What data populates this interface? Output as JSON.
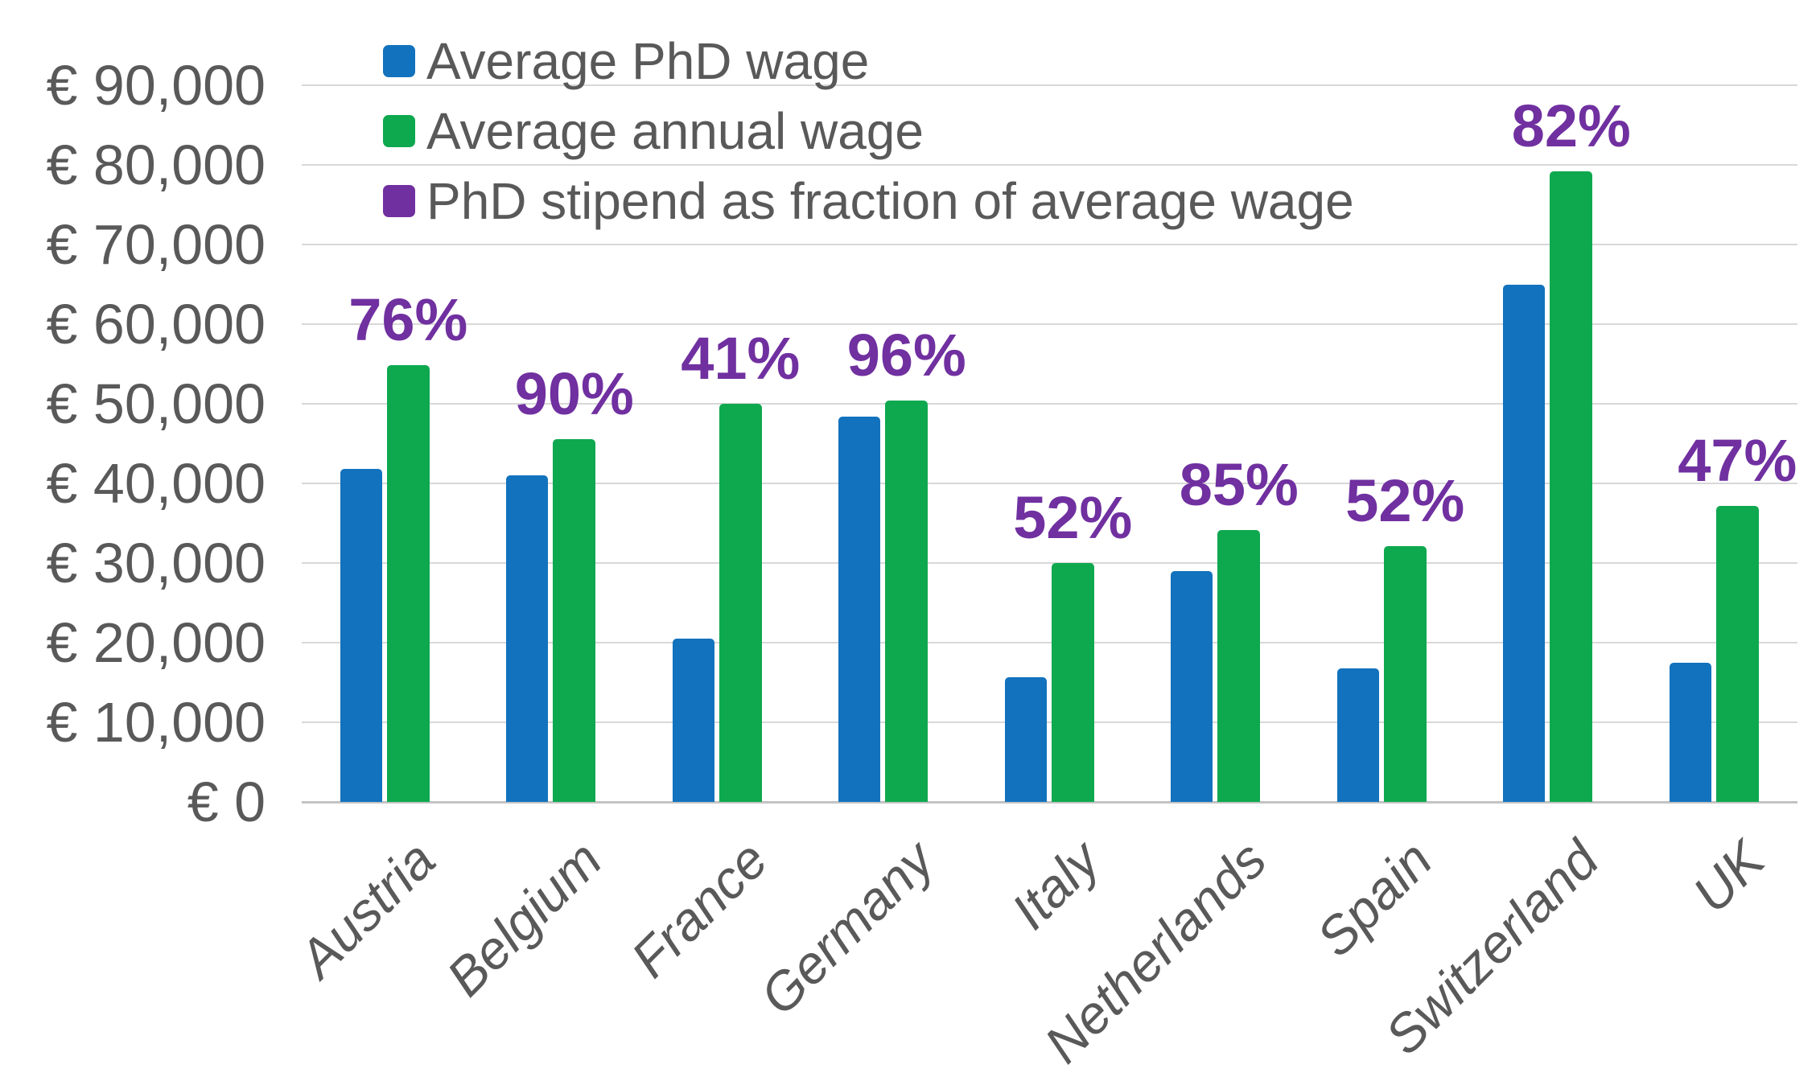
{
  "chart_data": {
    "type": "bar",
    "title": "",
    "xlabel": "",
    "ylabel": "",
    "categories": [
      "Austria",
      "Belgium",
      "France",
      "Germany",
      "Italy",
      "Netherlands",
      "Spain",
      "Switzerland",
      "UK"
    ],
    "series": [
      {
        "name": "Average PhD wage",
        "color": "#1272bd",
        "values": [
          41800,
          41000,
          20500,
          48400,
          15700,
          29000,
          16800,
          65000,
          17500
        ]
      },
      {
        "name": "Average annual wage",
        "color": "#0ea84f",
        "values": [
          54800,
          45600,
          50000,
          50400,
          30000,
          34100,
          32100,
          79200,
          37200
        ]
      },
      {
        "name": "PhD stipend as fraction of average wage",
        "color": "#7030a0",
        "labels": [
          "76%",
          "90%",
          "41%",
          "96%",
          "52%",
          "85%",
          "52%",
          "82%",
          "47%"
        ]
      }
    ],
    "y_axis": {
      "min": 0,
      "max": 90000,
      "step": 10000,
      "tick_labels": [
        "€ 0",
        "€ 10,000",
        "€ 20,000",
        "€ 30,000",
        "€ 40,000",
        "€ 50,000",
        "€ 60,000",
        "€ 70,000",
        "€ 80,000",
        "€ 90,000"
      ]
    },
    "legend_position": "top-left",
    "grid": true,
    "colors": {
      "tick_text": "#595959",
      "category_text": "#595959",
      "gridline": "#d8d8d8",
      "axis_line": "#c3c3c3",
      "annotation": "#7030a0"
    }
  }
}
